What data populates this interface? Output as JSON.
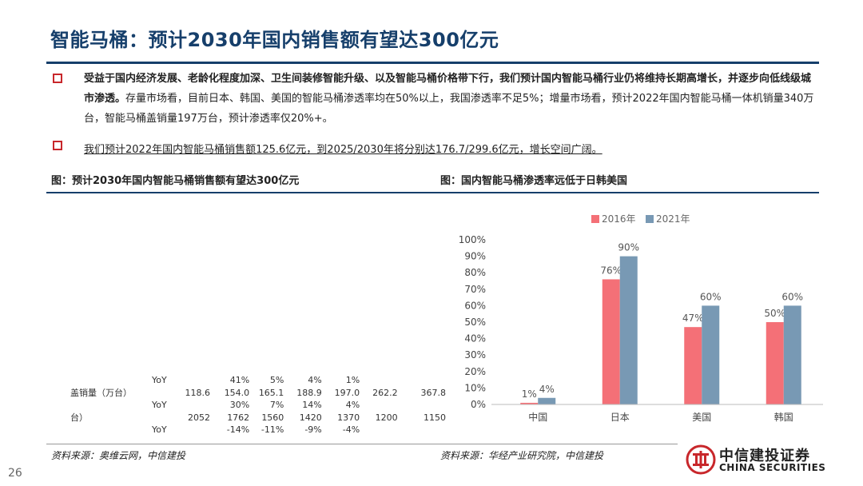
{
  "title": "智能马桶：预计2030年国内销售额有望达300亿元",
  "bullets": {
    "b1_bold": "受益于国内经济发展、老龄化程度加深、卫生间装修智能升级、以及智能马桶价格带下行，我们预计国内智能马桶行业仍将维持长期高增长，并逐步向低线级城市渗透。",
    "b1_rest": "存量市场看，目前日本、韩国、美国的智能马桶渗透率均在50%以上，我国渗透率不足5%；增量市场看，预计2022年国内智能马桶一体机销量340万台，智能马桶盖销量197万台，预计渗透率仅20%+。",
    "b2": "我们预计2022年国内智能马桶销售额125.6亿元，到2025/2030年将分别达176.7/299.6亿元，增长空间广阔。"
  },
  "captions": {
    "left": "图：预计2030年国内智能马桶销售额有望达300亿元",
    "right": "图：国内智能马桶渗透率远低于日韩美国"
  },
  "table": {
    "rows": [
      [
        "YoY",
        "",
        "41%",
        "5%",
        "4%",
        "1%",
        "",
        ""
      ],
      [
        "盖销量（万台）",
        "118.6",
        "154.0",
        "165.1",
        "188.9",
        "197.0",
        "262.2",
        "367.8"
      ],
      [
        "YoY",
        "",
        "30%",
        "7%",
        "14%",
        "4%",
        "",
        ""
      ],
      [
        "台）",
        "2052",
        "1762",
        "1560",
        "1420",
        "1370",
        "1200",
        "1150"
      ],
      [
        "YoY",
        "",
        "-14%",
        "-11%",
        "-9%",
        "-4%",
        "",
        ""
      ]
    ]
  },
  "sources": {
    "left": "资料来源：奥维云网，中信建投",
    "right": "资料来源：华经产业研究院，中信建投"
  },
  "page_number": "26",
  "logo": {
    "cn": "中信建投证券",
    "en": "CHINA SECURITIES"
  },
  "colors": {
    "navy": "#163f6b",
    "red": "#c8272b",
    "series2016": "#f47077",
    "series2021": "#7899b4"
  },
  "chart_data": {
    "type": "bar",
    "title": "国内智能马桶渗透率远低于日韩美国",
    "categories": [
      "中国",
      "日本",
      "美国",
      "韩国"
    ],
    "series": [
      {
        "name": "2016年",
        "values": [
          1,
          76,
          47,
          50
        ],
        "labels": [
          "1%",
          "76%",
          "47%",
          "50%"
        ]
      },
      {
        "name": "2021年",
        "values": [
          4,
          90,
          60,
          60
        ],
        "labels": [
          "4%",
          "90%",
          "60%",
          "60%"
        ]
      }
    ],
    "ylim": [
      0,
      100
    ],
    "yticks": [
      "0%",
      "10%",
      "20%",
      "30%",
      "40%",
      "50%",
      "60%",
      "70%",
      "80%",
      "90%",
      "100%"
    ],
    "legend": "top-center",
    "grid": false
  }
}
